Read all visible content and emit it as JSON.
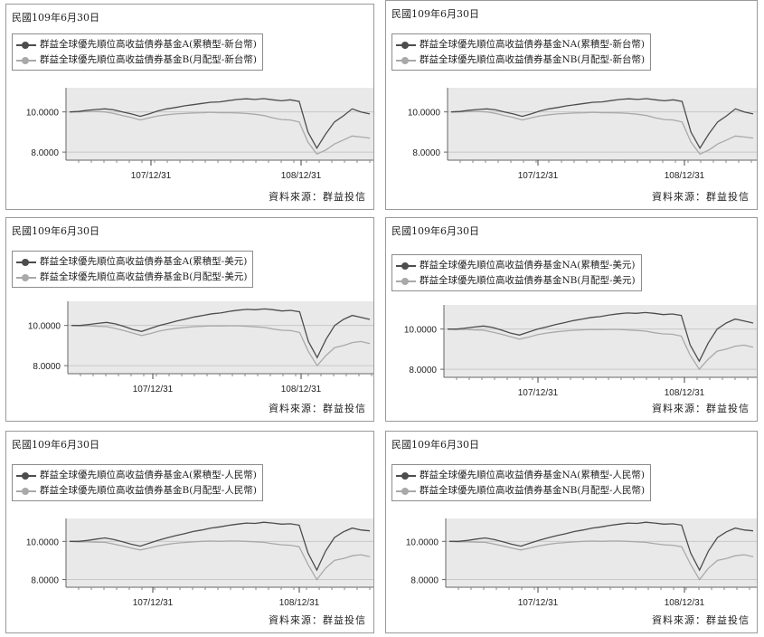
{
  "source_label": "資料來源：群益投信",
  "colors": {
    "dark_series": "#4d4d4d",
    "light_series": "#a9a9a9",
    "plot_bg": "#e9e9e9",
    "border": "#9a9a9a"
  },
  "panels": [
    {
      "date": "民國109年6月30日",
      "legend": [
        "群益全球優先順位高收益債券基金A(累積型-新台幣)",
        "群益全球優先順位高收益債券基金B(月配型-新台幣)"
      ],
      "chart_data": {
        "type": "line",
        "title": "",
        "x_tick_labels": [
          "107/12/31",
          "108/12/31"
        ],
        "y_tick_labels": [
          "10.0000",
          "8.0000"
        ],
        "ylim": [
          7.6,
          11.2
        ],
        "series": [
          {
            "name": "群益全球優先順位高收益債券基金A(累積型-新台幣)",
            "color": "#4d4d4d",
            "values": [
              10.0,
              10.02,
              10.08,
              10.12,
              10.15,
              10.1,
              10.0,
              9.9,
              9.78,
              9.9,
              10.05,
              10.15,
              10.22,
              10.3,
              10.36,
              10.42,
              10.48,
              10.5,
              10.56,
              10.62,
              10.65,
              10.62,
              10.66,
              10.6,
              10.55,
              10.6,
              10.52,
              9.0,
              8.2,
              8.9,
              9.5,
              9.8,
              10.15,
              10.0,
              9.9
            ]
          },
          {
            "name": "群益全球優先順位高收益債券基金B(月配型-新台幣)",
            "color": "#a9a9a9",
            "values": [
              10.0,
              10.0,
              10.02,
              10.02,
              10.0,
              9.92,
              9.82,
              9.72,
              9.6,
              9.7,
              9.8,
              9.86,
              9.9,
              9.92,
              9.95,
              9.96,
              9.98,
              9.96,
              9.96,
              9.95,
              9.92,
              9.88,
              9.82,
              9.7,
              9.62,
              9.6,
              9.5,
              8.5,
              7.9,
              8.1,
              8.4,
              8.6,
              8.8,
              8.75,
              8.7
            ]
          }
        ]
      }
    },
    {
      "date": "民國109年6月30日",
      "legend": [
        "群益全球優先順位高收益債券基金NA(累積型-新台幣)",
        "群益全球優先順位高收益債券基金NB(月配型-新台幣)"
      ],
      "chart_data": {
        "type": "line",
        "title": "",
        "x_tick_labels": [
          "107/12/31",
          "108/12/31"
        ],
        "y_tick_labels": [
          "10.0000",
          "8.0000"
        ],
        "ylim": [
          7.6,
          11.2
        ],
        "series": [
          {
            "name": "群益全球優先順位高收益債券基金NA(累積型-新台幣)",
            "color": "#4d4d4d",
            "values": [
              10.0,
              10.02,
              10.08,
              10.12,
              10.15,
              10.1,
              10.0,
              9.9,
              9.78,
              9.9,
              10.05,
              10.15,
              10.22,
              10.3,
              10.36,
              10.42,
              10.48,
              10.5,
              10.56,
              10.62,
              10.65,
              10.62,
              10.66,
              10.6,
              10.55,
              10.6,
              10.52,
              9.0,
              8.2,
              8.9,
              9.5,
              9.8,
              10.15,
              10.0,
              9.9
            ]
          },
          {
            "name": "群益全球優先順位高收益債券基金NB(月配型-新台幣)",
            "color": "#a9a9a9",
            "values": [
              10.0,
              10.0,
              10.02,
              10.02,
              10.0,
              9.92,
              9.82,
              9.72,
              9.6,
              9.7,
              9.8,
              9.86,
              9.9,
              9.92,
              9.95,
              9.96,
              9.98,
              9.96,
              9.96,
              9.95,
              9.92,
              9.88,
              9.82,
              9.7,
              9.62,
              9.6,
              9.5,
              8.5,
              7.9,
              8.1,
              8.4,
              8.6,
              8.8,
              8.75,
              8.7
            ]
          }
        ]
      }
    },
    {
      "date": "民國109年6月30日",
      "legend": [
        "群益全球優先順位高收益債券基金A(累積型-美元)",
        "群益全球優先順位高收益債券基金B(月配型-美元)"
      ],
      "chart_data": {
        "type": "line",
        "title": "",
        "x_tick_labels": [
          "107/12/31",
          "108/12/31"
        ],
        "y_tick_labels": [
          "10.0000",
          "8.0000"
        ],
        "ylim": [
          7.6,
          11.2
        ],
        "series": [
          {
            "name": "群益全球優先順位高收益債券基金A(累積型-美元)",
            "color": "#4d4d4d",
            "values": [
              10.0,
              10.0,
              10.05,
              10.1,
              10.15,
              10.08,
              9.95,
              9.8,
              9.7,
              9.85,
              10.0,
              10.1,
              10.22,
              10.32,
              10.42,
              10.5,
              10.58,
              10.62,
              10.7,
              10.76,
              10.8,
              10.78,
              10.82,
              10.78,
              10.72,
              10.75,
              10.68,
              9.2,
              8.4,
              9.3,
              10.0,
              10.3,
              10.5,
              10.4,
              10.3
            ]
          },
          {
            "name": "群益全球優先順位高收益債券基金B(月配型-美元)",
            "color": "#a9a9a9",
            "values": [
              10.0,
              9.98,
              9.98,
              9.96,
              9.94,
              9.85,
              9.74,
              9.62,
              9.5,
              9.6,
              9.72,
              9.8,
              9.86,
              9.9,
              9.94,
              9.96,
              9.98,
              9.97,
              9.98,
              9.98,
              9.96,
              9.93,
              9.9,
              9.82,
              9.76,
              9.74,
              9.65,
              8.7,
              8.0,
              8.5,
              8.9,
              9.0,
              9.15,
              9.2,
              9.1
            ]
          }
        ]
      }
    },
    {
      "date": "民國109年6月30日",
      "legend": [
        "群益全球優先順位高收益債券基金NA(累積型-美元)",
        "群益全球優先順位高收益債券基金NB(月配型-美元)"
      ],
      "chart_data": {
        "type": "line",
        "title": "",
        "x_tick_labels": [
          "107/12/31",
          "108/12/31"
        ],
        "y_tick_labels": [
          "10.0000",
          "8.0000"
        ],
        "ylim": [
          7.6,
          11.2
        ],
        "series": [
          {
            "name": "群益全球優先順位高收益債券基金NA(累積型-美元)",
            "color": "#4d4d4d",
            "values": [
              10.0,
              10.0,
              10.05,
              10.1,
              10.15,
              10.08,
              9.95,
              9.8,
              9.7,
              9.85,
              10.0,
              10.1,
              10.22,
              10.32,
              10.42,
              10.5,
              10.58,
              10.62,
              10.7,
              10.76,
              10.8,
              10.78,
              10.82,
              10.78,
              10.72,
              10.75,
              10.68,
              9.2,
              8.4,
              9.3,
              10.0,
              10.3,
              10.5,
              10.4,
              10.3
            ]
          },
          {
            "name": "群益全球優先順位高收益債券基金NB(月配型-美元)",
            "color": "#a9a9a9",
            "values": [
              10.0,
              9.98,
              9.98,
              9.96,
              9.94,
              9.85,
              9.74,
              9.62,
              9.5,
              9.6,
              9.72,
              9.8,
              9.86,
              9.9,
              9.94,
              9.96,
              9.98,
              9.97,
              9.98,
              9.98,
              9.96,
              9.93,
              9.9,
              9.82,
              9.76,
              9.74,
              9.65,
              8.7,
              8.0,
              8.5,
              8.9,
              9.0,
              9.15,
              9.2,
              9.1
            ]
          }
        ]
      }
    },
    {
      "date": "民國109年6月30日",
      "legend": [
        "群益全球優先順位高收益債券基金A(累積型-人民幣)",
        "群益全球優先順位高收益債券基金B(月配型-人民幣)"
      ],
      "chart_data": {
        "type": "line",
        "title": "",
        "x_tick_labels": [
          "107/12/31",
          "108/12/31"
        ],
        "y_tick_labels": [
          "10.0000",
          "8.0000"
        ],
        "ylim": [
          7.6,
          11.2
        ],
        "series": [
          {
            "name": "群益全球優先順位高收益債券基金A(累積型-人民幣)",
            "color": "#4d4d4d",
            "values": [
              10.0,
              10.0,
              10.05,
              10.12,
              10.18,
              10.1,
              9.98,
              9.85,
              9.75,
              9.9,
              10.05,
              10.18,
              10.3,
              10.4,
              10.52,
              10.6,
              10.7,
              10.76,
              10.84,
              10.9,
              10.96,
              10.94,
              11.0,
              10.96,
              10.9,
              10.92,
              10.85,
              9.4,
              8.5,
              9.5,
              10.2,
              10.5,
              10.7,
              10.6,
              10.55
            ]
          },
          {
            "name": "群益全球優先順位高收益債券基金B(月配型-人民幣)",
            "color": "#a9a9a9",
            "values": [
              10.0,
              9.98,
              9.98,
              9.96,
              9.95,
              9.86,
              9.76,
              9.65,
              9.55,
              9.65,
              9.76,
              9.84,
              9.9,
              9.94,
              9.98,
              10.0,
              10.02,
              10.0,
              10.02,
              10.02,
              10.0,
              9.98,
              9.95,
              9.88,
              9.82,
              9.8,
              9.72,
              8.8,
              8.0,
              8.6,
              9.0,
              9.1,
              9.25,
              9.3,
              9.2
            ]
          }
        ]
      }
    },
    {
      "date": "民國109年6月30日",
      "legend": [
        "群益全球優先順位高收益債券基金NA(累積型-人民幣)",
        "群益全球優先順位高收益債券基金NB(月配型-人民幣)"
      ],
      "chart_data": {
        "type": "line",
        "title": "",
        "x_tick_labels": [
          "107/12/31",
          "108/12/31"
        ],
        "y_tick_labels": [
          "10.0000",
          "8.0000"
        ],
        "ylim": [
          7.6,
          11.2
        ],
        "series": [
          {
            "name": "群益全球優先順位高收益債券基金NA(累積型-人民幣)",
            "color": "#4d4d4d",
            "values": [
              10.0,
              10.0,
              10.05,
              10.12,
              10.18,
              10.1,
              9.98,
              9.85,
              9.75,
              9.9,
              10.05,
              10.18,
              10.3,
              10.4,
              10.52,
              10.6,
              10.7,
              10.76,
              10.84,
              10.9,
              10.96,
              10.94,
              11.0,
              10.96,
              10.9,
              10.92,
              10.85,
              9.4,
              8.5,
              9.5,
              10.2,
              10.5,
              10.7,
              10.6,
              10.55
            ]
          },
          {
            "name": "群益全球優先順位高收益債券基金NB(月配型-人民幣)",
            "color": "#a9a9a9",
            "values": [
              10.0,
              9.98,
              9.98,
              9.96,
              9.95,
              9.86,
              9.76,
              9.65,
              9.55,
              9.65,
              9.76,
              9.84,
              9.9,
              9.94,
              9.98,
              10.0,
              10.02,
              10.0,
              10.02,
              10.02,
              10.0,
              9.98,
              9.95,
              9.88,
              9.82,
              9.8,
              9.72,
              8.8,
              8.0,
              8.6,
              9.0,
              9.1,
              9.25,
              9.3,
              9.2
            ]
          }
        ]
      }
    }
  ]
}
